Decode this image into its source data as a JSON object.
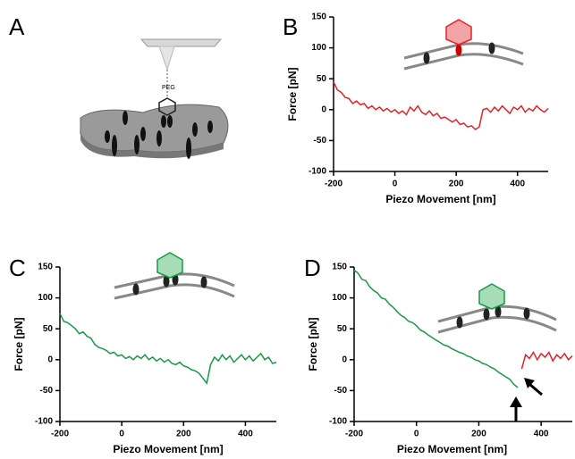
{
  "illustration": {
    "label": "A",
    "text": "PEG"
  },
  "chart_data": [
    {
      "type": "line",
      "label": "B",
      "xlabel": "Piezo Movement [nm]",
      "ylabel": "Force [pN]",
      "xlim": [
        -200,
        500
      ],
      "xticks": [
        -200,
        0,
        200,
        400
      ],
      "ylim": [
        -100,
        150
      ],
      "yticks": [
        -100,
        -50,
        0,
        50,
        100,
        150
      ],
      "x": [
        -200,
        -187.5,
        -175,
        -162.5,
        -150,
        -137.5,
        -125,
        -112.5,
        -100,
        -87.5,
        -75,
        -62.5,
        -50,
        -37.5,
        -25,
        -12.5,
        0,
        12.5,
        25,
        37.5,
        50,
        62.5,
        75,
        87.5,
        100,
        112.5,
        125,
        137.5,
        150,
        162.5,
        175,
        187.5,
        200,
        212.5,
        225,
        237.5,
        250,
        262.5,
        275,
        287.5,
        300,
        312.5,
        325,
        337.5,
        350,
        362.5,
        375,
        387.5,
        400,
        412.5,
        425,
        437.5,
        450,
        462.5,
        475,
        487.5,
        500
      ],
      "series": [
        {
          "color": "#e8202a",
          "values": [
            45,
            32,
            28,
            20,
            18,
            10,
            14,
            8,
            10,
            2,
            6,
            0,
            4,
            -2,
            2,
            -4,
            0,
            -6,
            -2,
            -8,
            4,
            -2,
            6,
            -4,
            -8,
            -2,
            -10,
            -6,
            -14,
            -12,
            -16,
            -20,
            -16,
            -24,
            -22,
            -28,
            -26,
            -32,
            -28,
            0,
            2,
            -4,
            4,
            -2,
            6,
            0,
            -6,
            4,
            0,
            6,
            -4,
            2,
            -2,
            6,
            0,
            -4,
            2
          ]
        }
      ]
    },
    {
      "type": "line",
      "label": "C",
      "xlabel": "Piezo Movement [nm]",
      "ylabel": "Force [pN]",
      "xlim": [
        -200,
        500
      ],
      "xticks": [
        -200,
        0,
        200,
        400
      ],
      "ylim": [
        -100,
        150
      ],
      "yticks": [
        -100,
        -50,
        0,
        50,
        100,
        150
      ],
      "x": [
        -200,
        -187.5,
        -175,
        -162.5,
        -150,
        -137.5,
        -125,
        -112.5,
        -100,
        -87.5,
        -75,
        -62.5,
        -50,
        -37.5,
        -25,
        -12.5,
        0,
        12.5,
        25,
        37.5,
        50,
        62.5,
        75,
        87.5,
        100,
        112.5,
        125,
        137.5,
        150,
        162.5,
        175,
        187.5,
        200,
        212.5,
        225,
        237.5,
        250,
        262.5,
        275,
        287.5,
        300,
        312.5,
        325,
        337.5,
        350,
        362.5,
        375,
        387.5,
        400,
        412.5,
        425,
        437.5,
        450,
        462.5,
        475,
        487.5,
        500
      ],
      "series": [
        {
          "color": "#1a9a48",
          "values": [
            75,
            62,
            60,
            55,
            50,
            42,
            45,
            38,
            35,
            25,
            20,
            18,
            15,
            10,
            12,
            6,
            8,
            2,
            5,
            0,
            6,
            2,
            8,
            0,
            4,
            -2,
            2,
            -4,
            0,
            -6,
            -8,
            -4,
            -10,
            -12,
            -16,
            -18,
            -22,
            -30,
            -38,
            -8,
            4,
            -2,
            8,
            0,
            6,
            -4,
            2,
            8,
            0,
            6,
            -2,
            4,
            10,
            0,
            4,
            -6,
            -4
          ]
        }
      ]
    },
    {
      "type": "line",
      "label": "D",
      "xlabel": "Piezo Movement [nm]",
      "ylabel": "Force [pN]",
      "xlim": [
        -200,
        500
      ],
      "xticks": [
        -200,
        0,
        200,
        400
      ],
      "ylim": [
        -100,
        150
      ],
      "yticks": [
        -100,
        -50,
        0,
        50,
        100,
        150
      ],
      "x": [
        -200,
        -187.5,
        -175,
        -162.5,
        -150,
        -137.5,
        -125,
        -112.5,
        -100,
        -87.5,
        -75,
        -62.5,
        -50,
        -37.5,
        -25,
        -12.5,
        0,
        12.5,
        25,
        37.5,
        50,
        62.5,
        75,
        87.5,
        100,
        112.5,
        125,
        137.5,
        150,
        162.5,
        175,
        187.5,
        200,
        212.5,
        225,
        237.5,
        250,
        262.5,
        275,
        287.5,
        300,
        312.5,
        325,
        337.5,
        350,
        362.5,
        375,
        387.5,
        400,
        412.5,
        425,
        437.5,
        450,
        462.5,
        475,
        487.5,
        500
      ],
      "series": [
        {
          "color": "#1a9a48",
          "values": [
            145,
            140,
            130,
            128,
            118,
            112,
            108,
            100,
            98,
            90,
            85,
            78,
            72,
            68,
            62,
            60,
            55,
            48,
            45,
            40,
            36,
            32,
            28,
            24,
            22,
            18,
            15,
            12,
            10,
            6,
            4,
            0,
            -2,
            -6,
            -8,
            -12,
            -15,
            -20,
            -24,
            -28,
            -32,
            -40,
            -45,
            null,
            null,
            null,
            null,
            null,
            null,
            null,
            null,
            null,
            null,
            null,
            null,
            null,
            null
          ]
        },
        {
          "color": "#e8202a",
          "values": [
            null,
            null,
            null,
            null,
            null,
            null,
            null,
            null,
            null,
            null,
            null,
            null,
            null,
            null,
            null,
            null,
            null,
            null,
            null,
            null,
            null,
            null,
            null,
            null,
            null,
            null,
            null,
            null,
            null,
            null,
            null,
            null,
            null,
            null,
            null,
            null,
            null,
            null,
            null,
            null,
            null,
            null,
            null,
            -15,
            8,
            2,
            12,
            0,
            10,
            4,
            12,
            -2,
            8,
            2,
            10,
            0,
            6
          ]
        }
      ]
    }
  ]
}
